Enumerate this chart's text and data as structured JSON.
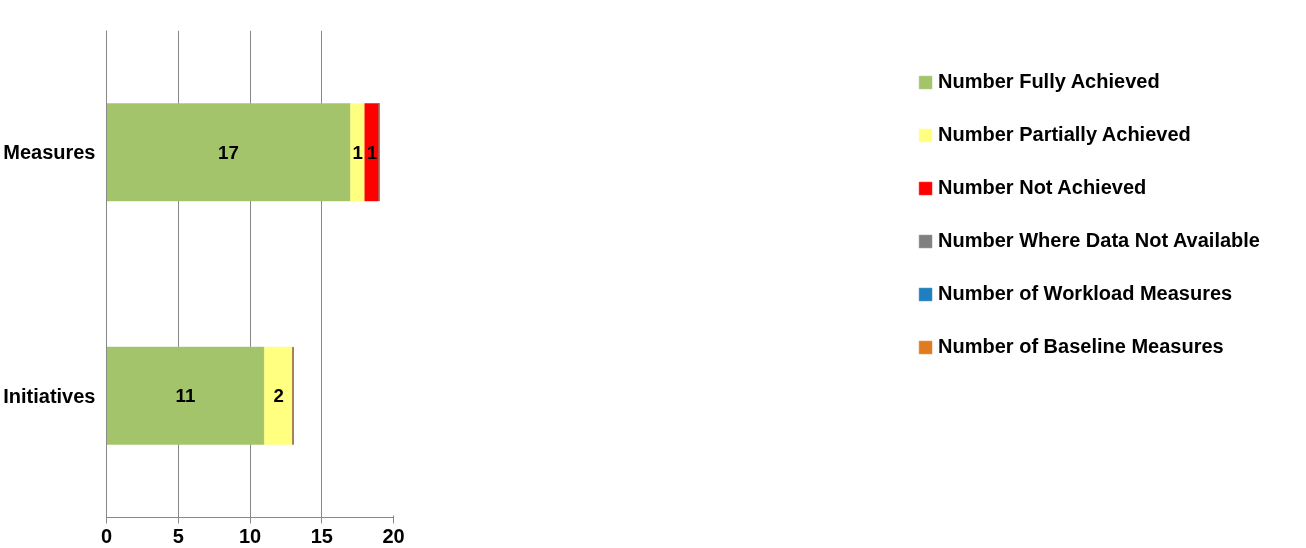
{
  "chart_data": {
    "type": "bar",
    "orientation": "horizontal",
    "stacked": true,
    "categories": [
      "Measures",
      "Initiatives"
    ],
    "series": [
      {
        "name": "Number Fully Achieved",
        "color": "#a3c46a",
        "values": [
          17,
          11
        ],
        "value_labels": [
          "17",
          "11"
        ]
      },
      {
        "name": "Number Partially Achieved",
        "color": "#ffff80",
        "values": [
          1,
          2
        ],
        "value_labels": [
          "1",
          "2"
        ]
      },
      {
        "name": "Number Not Achieved",
        "color": "#ff0000",
        "values": [
          1,
          0
        ],
        "value_labels": [
          "1",
          null
        ]
      },
      {
        "name": "Number Where Data Not Available",
        "color": "#808080",
        "values": [
          0,
          0
        ],
        "value_labels": [
          null,
          null
        ]
      },
      {
        "name": "Number of Workload Measures",
        "color": "#1f7fc0",
        "values": [
          0,
          0
        ],
        "value_labels": [
          null,
          null
        ]
      },
      {
        "name": "Number of Baseline Measures",
        "color": "#e07b20",
        "values": [
          0,
          0
        ],
        "value_labels": [
          null,
          null
        ]
      }
    ],
    "xlim": [
      0,
      20
    ],
    "xticks": [
      0,
      5,
      10,
      15,
      20
    ],
    "grid": "x",
    "legend": "right"
  }
}
